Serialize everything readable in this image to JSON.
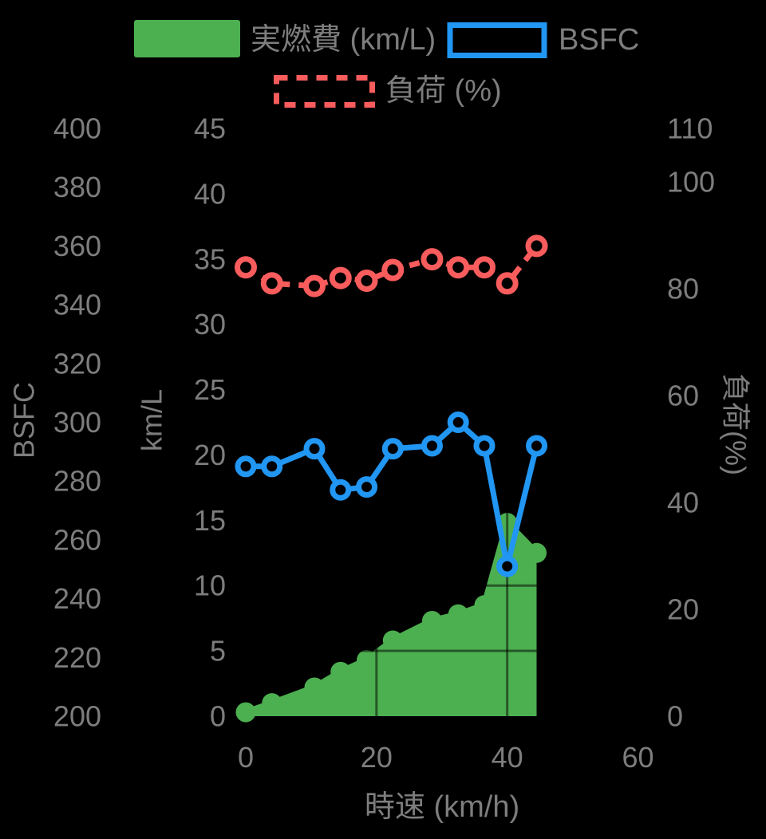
{
  "colors": {
    "green": "#4caf50",
    "blue": "#2196f3",
    "red": "#f85c5c",
    "text": "#7d7d7d",
    "background": "#000000",
    "gridline": "rgba(0,0,0,0.5)"
  },
  "legend": {
    "fuel_label": "実燃費 (km/L)",
    "bsfc_label": "BSFC",
    "load_label": "負荷 (%)"
  },
  "chart_data": {
    "type": "combo",
    "x": [
      0,
      4,
      10.5,
      14.5,
      18.5,
      22.5,
      28.5,
      32.5,
      36.5,
      40,
      44.5
    ],
    "series": [
      {
        "name": "実燃費 (km/L)",
        "type": "area",
        "axis": "kmL",
        "color": "#4caf50",
        "values": [
          0.3,
          1.0,
          2.2,
          3.4,
          4.3,
          5.8,
          7.3,
          7.8,
          8.5,
          14.8,
          12.5
        ]
      },
      {
        "name": "BSFC",
        "type": "line",
        "axis": "bsfc",
        "color": "#2196f3",
        "values": [
          285,
          285,
          291,
          277,
          278,
          291,
          292,
          300,
          292,
          251,
          292
        ]
      },
      {
        "name": "負荷 (%)",
        "type": "dashed-line",
        "axis": "load",
        "color": "#f85c5c",
        "values": [
          84,
          81,
          80.5,
          82,
          81.5,
          83.5,
          85.5,
          84,
          84,
          81,
          88
        ]
      }
    ],
    "axes": {
      "x": {
        "title": "時速 (km/h)",
        "range": [
          0,
          60
        ],
        "ticks": [
          0,
          20,
          40,
          60
        ]
      },
      "bsfc": {
        "title": "BSFC",
        "range": [
          200,
          400
        ],
        "ticks": [
          200,
          220,
          240,
          260,
          280,
          300,
          320,
          340,
          360,
          380,
          400
        ]
      },
      "kmL": {
        "title": "km/L",
        "range": [
          0,
          45
        ],
        "ticks": [
          0,
          5,
          10,
          15,
          20,
          25,
          30,
          35,
          40,
          45
        ]
      },
      "load": {
        "title": "負荷(%)",
        "range": [
          0,
          110
        ],
        "ticks": [
          0,
          20,
          40,
          60,
          80,
          100,
          110
        ]
      }
    },
    "visible_gridlines": {
      "x_kmh": [
        20,
        40
      ],
      "y_kmL": [
        5,
        10
      ]
    },
    "legend_position": "top",
    "grid": "dark-over-area"
  }
}
